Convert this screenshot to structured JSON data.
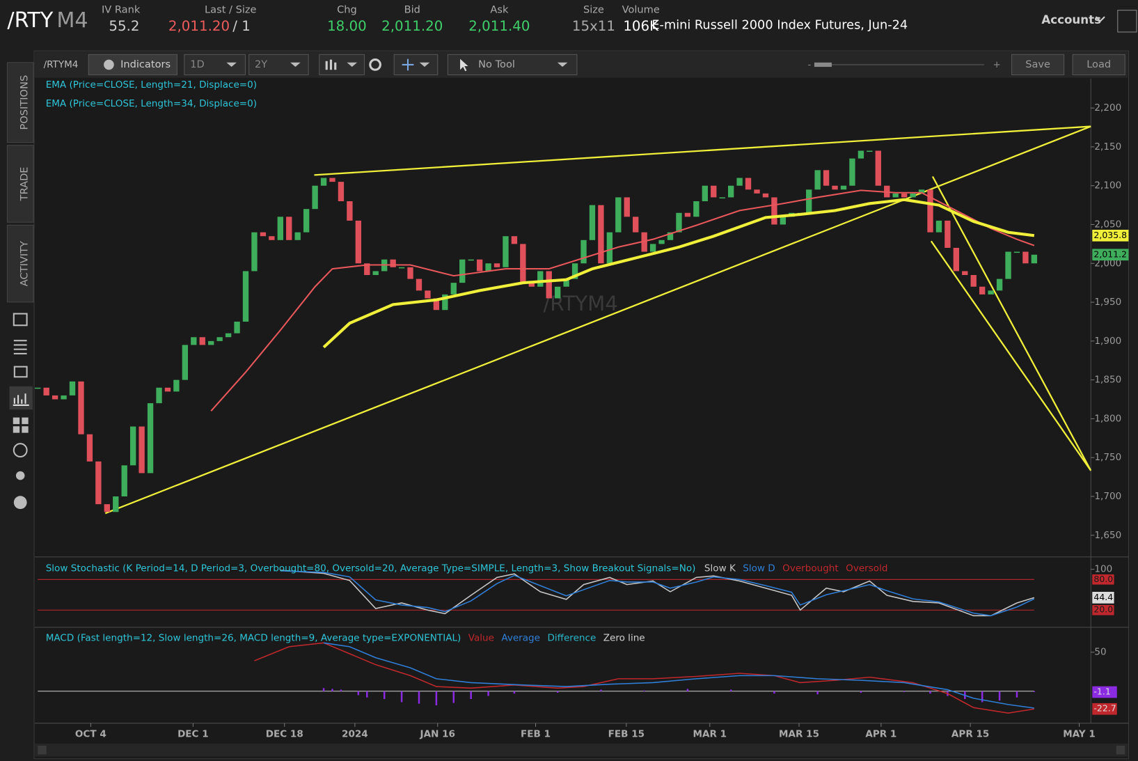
{
  "header": {
    "symbol_root": "/RTY",
    "symbol_month": "M4",
    "fields": [
      {
        "label": "IV Rank",
        "value": "55.2"
      },
      {
        "label": "Last / Size",
        "value": "2,011.20",
        "size": "/ 1"
      },
      {
        "label": "Chg",
        "value": "18.00"
      },
      {
        "label": "Bid",
        "value": "2,011.20"
      },
      {
        "label": "Ask",
        "value": "2,011.40"
      },
      {
        "label": "Size",
        "value": "15x11"
      },
      {
        "label": "Volume",
        "value": "106K"
      }
    ],
    "description": "E-mini Russell 2000 Index Futures, Jun-24",
    "accounts": "Accounts"
  },
  "toolbar": {
    "symbol": "/RTYM4",
    "indicators": "Indicators",
    "aggregation": "1D",
    "range": "2Y",
    "tool": "No Tool",
    "zoom_out": "-",
    "zoom_in": "+",
    "save": "Save",
    "load": "Load"
  },
  "sidebar": {
    "tabs": [
      "POSITIONS",
      "TRADE",
      "ACTIVITY"
    ]
  },
  "chart_data": {
    "type": "candlestick",
    "watermark": "/RTYM4",
    "close": [
      1840,
      1830,
      1825,
      1830,
      1848,
      1780,
      1745,
      1690,
      1680,
      1700,
      1740,
      1790,
      1730,
      1820,
      1840,
      1835,
      1850,
      1895,
      1905,
      1895,
      1900,
      1905,
      1910,
      1925,
      1990,
      2040,
      2035,
      2030,
      2060,
      2030,
      2040,
      2070,
      2100,
      2110,
      2105,
      2080,
      2055,
      2000,
      1985,
      1990,
      2005,
      1995,
      1995,
      1980,
      1965,
      1955,
      1940,
      1960,
      1975,
      2005,
      2005,
      1990,
      2000,
      1995,
      2035,
      2025,
      1975,
      1970,
      1990,
      1955,
      1970,
      1980,
      2000,
      2030,
      2075,
      2000,
      2040,
      2085,
      2060,
      2040,
      2015,
      2025,
      2030,
      2040,
      2065,
      2060,
      2080,
      2100,
      2085,
      2085,
      2100,
      2110,
      2095,
      2090,
      2085,
      2050,
      2060,
      2065,
      2065,
      2095,
      2120,
      2100,
      2095,
      2100,
      2135,
      2145,
      2145,
      2100,
      2085,
      2090,
      2085,
      2090,
      2095,
      2040,
      2055,
      2020,
      1990,
      1985,
      1970,
      1960,
      1965,
      1980,
      2015,
      2015,
      2000,
      2011.2
    ],
    "series": [
      {
        "name": "EMA (Price=CLOSE, Length=21, Displace=0)",
        "color": "#e8575a",
        "x": [
          20,
          24,
          28,
          32,
          34,
          38,
          43,
          48,
          54,
          59,
          63,
          67,
          71,
          76,
          81,
          86,
          90,
          95,
          99,
          102,
          106,
          110,
          113,
          115
        ],
        "values": [
          1810,
          1860,
          1914,
          1970,
          1993,
          1998,
          1998,
          1984,
          1993,
          1993,
          2007,
          2021,
          2031,
          2049,
          2068,
          2077,
          2085,
          2094,
          2091,
          2091,
          2068,
          2045,
          2031,
          2023
        ]
      },
      {
        "name": "EMA (Price=CLOSE, Length=34, Displace=0)",
        "color": "#f0ef3a",
        "x": [
          33,
          36,
          41,
          46,
          51,
          56,
          61,
          64,
          69,
          74,
          78,
          84,
          88,
          92,
          96,
          100,
          104,
          108,
          112,
          115
        ],
        "values": [
          1892,
          1923,
          1947,
          1953,
          1965,
          1975,
          1979,
          1993,
          2007,
          2021,
          2035,
          2059,
          2063,
          2068,
          2077,
          2082,
          2075,
          2054,
          2040,
          2035.8
        ]
      }
    ],
    "ylim": [
      1624,
      2238
    ],
    "yticks": [
      {
        "value": 2200,
        "label": "2,200"
      },
      {
        "value": 2150,
        "label": "2,150"
      },
      {
        "value": 2100,
        "label": "2,100"
      },
      {
        "value": 2050,
        "label": "2,050"
      },
      {
        "value": 2000,
        "label": "2,000"
      },
      {
        "value": 1950,
        "label": "1,950"
      },
      {
        "value": 1900,
        "label": "1,900"
      },
      {
        "value": 1850,
        "label": "1,850"
      },
      {
        "value": 1800,
        "label": "1,800"
      },
      {
        "value": 1750,
        "label": "1,750"
      },
      {
        "value": 1700,
        "label": "1,700"
      },
      {
        "value": 1650,
        "label": "1,650"
      }
    ],
    "price_tags": [
      {
        "value": 2035.8,
        "label": "2,035.8",
        "color": "#f0ef3a"
      },
      {
        "value": 2011.2,
        "label": "2,011.2",
        "color": "#3fae5c"
      }
    ],
    "x_labels": [
      "OCT 4",
      "DEC 1",
      "DEC 18",
      "2024",
      "JAN 16",
      "FEB 1",
      "FEB 15",
      "MAR 1",
      "MAR 15",
      "APR 1",
      "APR 15",
      "MAY 1"
    ],
    "stochastic": {
      "title": "Slow Stochastic (K Period=14, D Period=3, Overbought=80, Oversold=20, Average Type=SIMPLE, Length=3, Show Breakout Signals=No)",
      "ylim": [
        -11,
        120
      ],
      "yticks": [
        100
      ],
      "levels": [
        {
          "value": 80,
          "label": "80.0"
        },
        {
          "value": 20,
          "label": "20.0"
        }
      ],
      "tag": {
        "value": 44.4,
        "label": "44.4"
      },
      "series": [
        {
          "name": "Slow K",
          "color": "#c8c8c8",
          "x": [
            28,
            33,
            36,
            39,
            42,
            45,
            47,
            50,
            53,
            55,
            58,
            61,
            63,
            66,
            68,
            71,
            73,
            76,
            78,
            81,
            84,
            87,
            88,
            91,
            93,
            96,
            98,
            101,
            104,
            108,
            110,
            113,
            115
          ],
          "values": [
            98,
            92,
            78,
            23,
            34,
            20,
            13,
            49,
            84,
            91,
            56,
            41,
            70,
            84,
            70,
            77,
            56,
            84,
            87,
            77,
            63,
            49,
            20,
            63,
            56,
            77,
            49,
            37,
            34,
            9,
            9,
            34,
            44.4
          ]
        },
        {
          "name": "Slow D",
          "color": "#2f7fd8",
          "x": [
            28,
            33,
            36,
            39,
            42,
            45,
            47,
            50,
            53,
            55,
            58,
            61,
            63,
            66,
            68,
            71,
            73,
            76,
            78,
            81,
            84,
            87,
            88,
            91,
            93,
            96,
            98,
            101,
            104,
            108,
            110,
            113,
            115
          ],
          "values": [
            97,
            94,
            85,
            40,
            30,
            25,
            17,
            38,
            72,
            88,
            68,
            48,
            60,
            78,
            75,
            75,
            63,
            75,
            85,
            80,
            68,
            55,
            30,
            50,
            58,
            70,
            58,
            42,
            36,
            14,
            9,
            26,
            42
          ]
        },
        {
          "name": "Overbought",
          "color": "#c0282d"
        },
        {
          "name": "Oversold",
          "color": "#c0282d"
        }
      ]
    },
    "macd": {
      "title": "MACD (Fast length=12, Slow length=26, MACD length=9, Average type=EXPONENTIAL)",
      "ylim": [
        -40,
        80
      ],
      "yticks": [
        50
      ],
      "tags": [
        {
          "value": -1.1,
          "label": "-1.1",
          "color": "#8a2be2"
        },
        {
          "value": -22.7,
          "label": "-22.7",
          "color": "#c0282d"
        }
      ],
      "series": [
        {
          "name": "Value",
          "color": "#c0282d",
          "x": [
            25,
            29,
            33,
            36,
            39,
            43,
            46,
            50,
            55,
            60,
            63,
            67,
            71,
            76,
            81,
            85,
            88,
            92,
            96,
            101,
            105,
            108,
            112,
            115
          ],
          "values": [
            39,
            57,
            62,
            48,
            34,
            20,
            6,
            4,
            8,
            4,
            6,
            16,
            16,
            19,
            23,
            20,
            11,
            14,
            18,
            11,
            -3,
            -21,
            -28,
            -22.7
          ]
        },
        {
          "name": "Average",
          "color": "#2f7fd8",
          "x": [
            33,
            36,
            39,
            43,
            46,
            50,
            56,
            61,
            66,
            71,
            76,
            81,
            85,
            90,
            95,
            100,
            105,
            108,
            112,
            115
          ],
          "values": [
            62,
            57,
            43,
            30,
            16,
            11,
            8,
            6,
            9,
            11,
            16,
            20,
            20,
            16,
            14,
            11,
            2,
            -9,
            -17,
            -21.6
          ]
        },
        {
          "name": "Difference",
          "color": "#2ab7c9",
          "x": [
            33,
            34,
            35,
            37,
            38,
            40,
            42,
            44,
            46,
            48,
            50,
            52,
            55,
            60,
            65,
            70,
            75,
            80,
            85,
            90,
            95,
            100,
            103,
            105,
            107,
            109,
            111,
            113,
            115
          ],
          "values": [
            4,
            3,
            2,
            -5,
            -8,
            -10,
            -14,
            -16,
            -18,
            -15,
            -10,
            -6,
            -3,
            -2,
            2,
            1,
            3,
            2,
            -3,
            -4,
            -2,
            -1,
            -3,
            -6,
            -10,
            -14,
            -12,
            -8,
            -1.1
          ]
        },
        {
          "name": "Zero line",
          "color": "#d0d0d0"
        }
      ]
    }
  }
}
